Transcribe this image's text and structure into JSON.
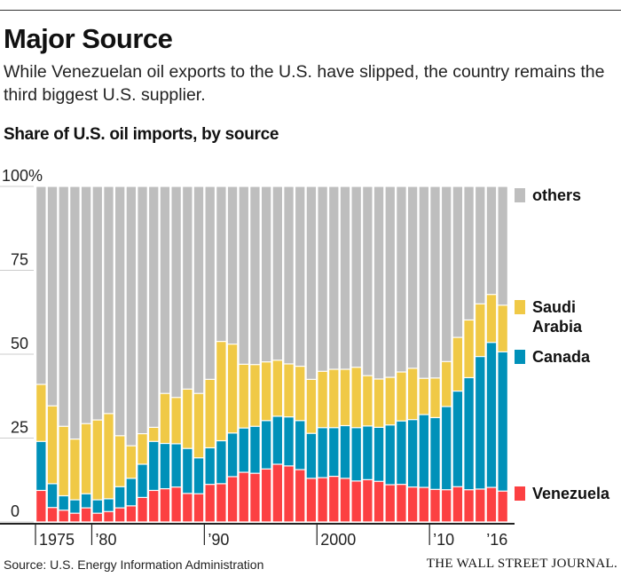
{
  "header": {
    "title": "Major Source",
    "subtitle": "While Venezuelan oil exports to the U.S. have slipped, the country remains the third biggest U.S. supplier."
  },
  "footer": {
    "source": "Source: U.S. Energy Information Administration",
    "publisher": "THE WALL STREET JOURNAL."
  },
  "chart_data": {
    "type": "bar",
    "stacked": true,
    "title": "Share of U.S. oil imports, by source",
    "ylabel": "",
    "xlabel": "",
    "ylim": [
      0,
      100
    ],
    "yticks": [
      {
        "v": 0,
        "l": "0"
      },
      {
        "v": 25,
        "l": "25"
      },
      {
        "v": 50,
        "l": "50"
      },
      {
        "v": 75,
        "l": "75"
      },
      {
        "v": 100,
        "l": "100%"
      }
    ],
    "xticks": [
      {
        "year": 1975,
        "l": "1975",
        "tick": true
      },
      {
        "year": 1980,
        "l": "’80",
        "tick": true
      },
      {
        "year": 1990,
        "l": "’90",
        "tick": true
      },
      {
        "year": 2000,
        "l": "2000",
        "tick": true
      },
      {
        "year": 2010,
        "l": "’10",
        "tick": true
      },
      {
        "year": 2016,
        "l": "’16",
        "tick": false
      }
    ],
    "years": [
      1975,
      1976,
      1977,
      1978,
      1979,
      1980,
      1981,
      1982,
      1983,
      1984,
      1985,
      1986,
      1987,
      1988,
      1989,
      1990,
      1991,
      1992,
      1993,
      1994,
      1995,
      1996,
      1997,
      1998,
      1999,
      2000,
      2001,
      2002,
      2003,
      2004,
      2005,
      2006,
      2007,
      2008,
      2009,
      2010,
      2011,
      2012,
      2013,
      2014,
      2015,
      2016
    ],
    "series": [
      {
        "name": "Venezuela",
        "color": "#fc4042",
        "values": [
          9.4,
          4.3,
          3.5,
          2.6,
          4.2,
          2.6,
          3.1,
          4.2,
          4.8,
          7.3,
          9.4,
          9.9,
          10.4,
          8.5,
          8.4,
          11.2,
          11.4,
          13.5,
          14.8,
          14.5,
          15.8,
          17.2,
          16.7,
          15.6,
          13.0,
          13.2,
          13.6,
          13.0,
          12.2,
          12.6,
          12.1,
          11.1,
          11.2,
          10.4,
          10.3,
          9.7,
          9.6,
          10.5,
          9.6,
          9.8,
          10.3,
          9.2
        ]
      },
      {
        "name": "Canada",
        "color": "#0091b9",
        "values": [
          14.6,
          7.1,
          4.3,
          4.0,
          4.2,
          4.0,
          3.8,
          6.3,
          8.2,
          9.9,
          14.6,
          13.5,
          12.9,
          13.4,
          10.7,
          10.9,
          12.8,
          13.0,
          13.2,
          14.0,
          14.4,
          14.3,
          14.6,
          14.6,
          13.4,
          14.9,
          14.5,
          15.7,
          15.9,
          16.0,
          16.1,
          17.8,
          18.9,
          20.1,
          21.7,
          21.4,
          24.8,
          28.5,
          33.4,
          39.5,
          43.2,
          41.5
        ]
      },
      {
        "name": "Saudi Arabia",
        "color": "#f0c946",
        "values": [
          17.0,
          23.2,
          20.7,
          18.1,
          20.9,
          23.8,
          25.4,
          15.2,
          9.7,
          9.1,
          4.2,
          14.9,
          13.8,
          17.7,
          19.2,
          20.4,
          29.6,
          26.5,
          19.0,
          18.4,
          17.5,
          16.7,
          15.8,
          16.2,
          16.1,
          16.8,
          17.4,
          16.8,
          18.0,
          15.0,
          14.4,
          14.2,
          14.6,
          15.3,
          10.8,
          11.8,
          13.4,
          16.0,
          17.2,
          15.7,
          14.3,
          13.9
        ]
      },
      {
        "name": "others",
        "color": "#bebebe",
        "values": [
          59.0,
          65.4,
          71.5,
          75.3,
          70.7,
          69.6,
          67.7,
          74.3,
          77.3,
          73.7,
          71.8,
          61.7,
          62.9,
          60.4,
          61.7,
          57.5,
          46.2,
          47.0,
          53.0,
          53.1,
          52.3,
          51.8,
          52.9,
          53.6,
          57.5,
          55.1,
          54.5,
          54.5,
          53.9,
          56.4,
          57.4,
          56.9,
          55.3,
          54.2,
          57.2,
          57.1,
          52.2,
          45.0,
          39.8,
          35.0,
          32.2,
          35.4
        ]
      }
    ],
    "legend": [
      {
        "label": "others",
        "color": "#bebebe"
      },
      {
        "label": "Saudi Arabia",
        "label_lines": [
          "Saudi",
          "Arabia"
        ],
        "color": "#f0c946"
      },
      {
        "label": "Canada",
        "color": "#0091b9"
      },
      {
        "label": "Venezuela",
        "color": "#fc4042"
      }
    ],
    "legend_placement": "right"
  }
}
